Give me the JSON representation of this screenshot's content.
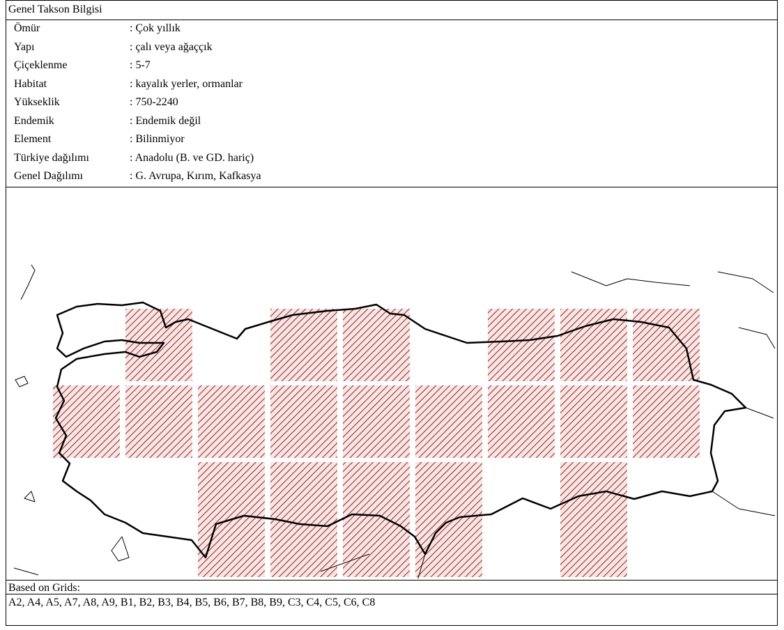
{
  "header": {
    "title": "Genel Takson Bilgisi"
  },
  "info": {
    "rows": [
      {
        "label": "Ömür",
        "value": ": Çok yıllık"
      },
      {
        "label": "Yapı",
        "value": ": çalı veya ağaççık"
      },
      {
        "label": "Çiçeklenme",
        "value": ": 5-7"
      },
      {
        "label": "Habitat",
        "value": ": kayalık yerler, ormanlar"
      },
      {
        "label": "Yükseklik",
        "value": ": 750-2240"
      },
      {
        "label": "Endemik",
        "value": ": Endemik değil"
      },
      {
        "label": "Element",
        "value": ": Bilinmiyor"
      },
      {
        "label": "Türkiye dağılımı",
        "value": ": Anadolu (B. ve GD. hariç)"
      },
      {
        "label": "Genel Dağılımı",
        "value": ": G. Avrupa, Kırım, Kafkasya"
      }
    ]
  },
  "grids": {
    "title": "Based on Grids:",
    "list": "A2, A4, A5, A7, A8, A9, B1, B2, B3, B4, B5, B6, B7, B8, B9, C3, C4, C5, C6, C8"
  }
}
